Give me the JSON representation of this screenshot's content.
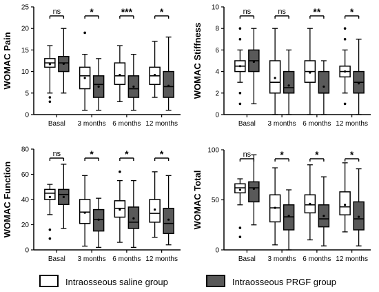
{
  "colors": {
    "saline": "#ffffff",
    "prgf": "#595959",
    "stroke": "#000000"
  },
  "legend": {
    "saline": "Intraosseous saline group",
    "prgf": "Intraosseous PRGF group"
  },
  "chart_data": [
    {
      "type": "boxplot",
      "ylabel": "WOMAC Pain",
      "ylim": [
        0,
        25
      ],
      "yticks": [
        0,
        5,
        10,
        15,
        20,
        25
      ],
      "categories": [
        "Basal",
        "3 months",
        "6 months",
        "12 months"
      ],
      "significance": [
        "ns",
        "*",
        "***",
        "*"
      ],
      "series": [
        {
          "name": "Intraosseous saline group",
          "boxes": [
            {
              "min": 5,
              "q1": 11,
              "median": 12,
              "q3": 13,
              "max": 16,
              "mean": 11.7,
              "outliers": [
                3,
                4
              ]
            },
            {
              "min": 1,
              "q1": 6,
              "median": 9,
              "q3": 11,
              "max": 14,
              "mean": 8.5,
              "outliers": [
                19
              ]
            },
            {
              "min": 3,
              "q1": 7,
              "median": 9,
              "q3": 12,
              "max": 16,
              "mean": 9.2,
              "outliers": []
            },
            {
              "min": 4,
              "q1": 7,
              "median": 9,
              "q3": 11,
              "max": 17,
              "mean": 9.2,
              "outliers": []
            }
          ]
        },
        {
          "name": "Intraosseous PRGF group",
          "boxes": [
            {
              "min": 5,
              "q1": 10,
              "median": 12,
              "q3": 13.5,
              "max": 20,
              "mean": 11.8,
              "outliers": []
            },
            {
              "min": 1,
              "q1": 4,
              "median": 7,
              "q3": 9,
              "max": 13,
              "mean": 6.5,
              "outliers": []
            },
            {
              "min": 1,
              "q1": 4,
              "median": 6,
              "q3": 9,
              "max": 14,
              "mean": 6.5,
              "outliers": []
            },
            {
              "min": 1,
              "q1": 4,
              "median": 6.5,
              "q3": 10,
              "max": 18,
              "mean": 6.7,
              "outliers": []
            }
          ]
        }
      ]
    },
    {
      "type": "boxplot",
      "ylabel": "WOMAC Stiffness",
      "ylim": [
        0,
        10
      ],
      "yticks": [
        0,
        2,
        4,
        6,
        8,
        10
      ],
      "categories": [
        "Basal",
        "3 months",
        "6 months",
        "12 months"
      ],
      "significance": [
        "ns",
        "ns",
        "**",
        "*"
      ],
      "series": [
        {
          "name": "Intraosseous saline group",
          "boxes": [
            {
              "min": 3,
              "q1": 4,
              "median": 4.5,
              "q3": 5,
              "max": 6,
              "mean": 4.5,
              "outliers": [
                1,
                2,
                7,
                8
              ]
            },
            {
              "min": 0,
              "q1": 2,
              "median": 3,
              "q3": 5,
              "max": 8,
              "mean": 3.4,
              "outliers": []
            },
            {
              "min": 0,
              "q1": 3,
              "median": 4,
              "q3": 5,
              "max": 8,
              "mean": 3.9,
              "outliers": []
            },
            {
              "min": 2,
              "q1": 3.5,
              "median": 4,
              "q3": 4.5,
              "max": 6,
              "mean": 4,
              "outliers": [
                1,
                7,
                8
              ]
            }
          ]
        },
        {
          "name": "Intraosseous PRGF group",
          "boxes": [
            {
              "min": 1,
              "q1": 4,
              "median": 5,
              "q3": 6,
              "max": 8,
              "mean": 4.9,
              "outliers": []
            },
            {
              "min": 0,
              "q1": 2,
              "median": 2.5,
              "q3": 4,
              "max": 6,
              "mean": 2.7,
              "outliers": []
            },
            {
              "min": 0,
              "q1": 2,
              "median": 2,
              "q3": 4,
              "max": 5,
              "mean": 2.6,
              "outliers": []
            },
            {
              "min": 0,
              "q1": 2,
              "median": 3,
              "q3": 4,
              "max": 7,
              "mean": 2.9,
              "outliers": []
            }
          ]
        }
      ]
    },
    {
      "type": "boxplot",
      "ylabel": "WOMAC Function",
      "ylim": [
        0,
        80
      ],
      "yticks": [
        0,
        20,
        40,
        60,
        80
      ],
      "categories": [
        "Basal",
        "3 months",
        "6 months",
        "12 months"
      ],
      "significance": [
        "ns",
        "*",
        "*",
        "*"
      ],
      "series": [
        {
          "name": "Intraosseous saline group",
          "boxes": [
            {
              "min": 28,
              "q1": 40,
              "median": 45,
              "q3": 48,
              "max": 52,
              "mean": 42,
              "outliers": [
                9,
                16
              ]
            },
            {
              "min": 3,
              "q1": 21,
              "median": 30,
              "q3": 40,
              "max": 59,
              "mean": 29.5,
              "outliers": []
            },
            {
              "min": 6,
              "q1": 26,
              "median": 33,
              "q3": 39,
              "max": 55,
              "mean": 32,
              "outliers": [
                62
              ]
            },
            {
              "min": 10,
              "q1": 22,
              "median": 29,
              "q3": 40,
              "max": 62,
              "mean": 32,
              "outliers": []
            }
          ]
        },
        {
          "name": "Intraosseous PRGF group",
          "boxes": [
            {
              "min": 17,
              "q1": 36,
              "median": 44,
              "q3": 48,
              "max": 68,
              "mean": 42,
              "outliers": []
            },
            {
              "min": 2,
              "q1": 15,
              "median": 24,
              "q3": 32,
              "max": 41,
              "mean": 24,
              "outliers": []
            },
            {
              "min": 2,
              "q1": 17,
              "median": 22,
              "q3": 34,
              "max": 55,
              "mean": 25,
              "outliers": []
            },
            {
              "min": 4,
              "q1": 13,
              "median": 21,
              "q3": 33,
              "max": 59,
              "mean": 24,
              "outliers": []
            }
          ]
        }
      ]
    },
    {
      "type": "boxplot",
      "ylabel": "WOMAC Total",
      "ylim": [
        0,
        100
      ],
      "yticks": [
        0,
        50,
        100
      ],
      "categories": [
        "Basal",
        "3 months",
        "6 months",
        "12 months"
      ],
      "significance": [
        "ns",
        "*",
        "*",
        "*"
      ],
      "series": [
        {
          "name": "Intraosseous saline group",
          "boxes": [
            {
              "min": 45,
              "q1": 57,
              "median": 62,
              "q3": 66,
              "max": 71,
              "mean": 60,
              "outliers": [
                13,
                22
              ]
            },
            {
              "min": 5,
              "q1": 28,
              "median": 42,
              "q3": 55,
              "max": 82,
              "mean": 42,
              "outliers": []
            },
            {
              "min": 10,
              "q1": 37,
              "median": 45,
              "q3": 55,
              "max": 85,
              "mean": 46,
              "outliers": []
            },
            {
              "min": 18,
              "q1": 35,
              "median": 43,
              "q3": 58,
              "max": 87,
              "mean": 45,
              "outliers": []
            }
          ]
        },
        {
          "name": "Intraosseous PRGF group",
          "boxes": [
            {
              "min": 25,
              "q1": 48,
              "median": 62,
              "q3": 68,
              "max": 95,
              "mean": 61,
              "outliers": []
            },
            {
              "min": 0,
              "q1": 20,
              "median": 33,
              "q3": 45,
              "max": 60,
              "mean": 34,
              "outliers": []
            },
            {
              "min": 4,
              "q1": 23,
              "median": 31,
              "q3": 45,
              "max": 73,
              "mean": 34,
              "outliers": []
            },
            {
              "min": 4,
              "q1": 20,
              "median": 31,
              "q3": 48,
              "max": 81,
              "mean": 33,
              "outliers": []
            }
          ]
        }
      ]
    }
  ]
}
